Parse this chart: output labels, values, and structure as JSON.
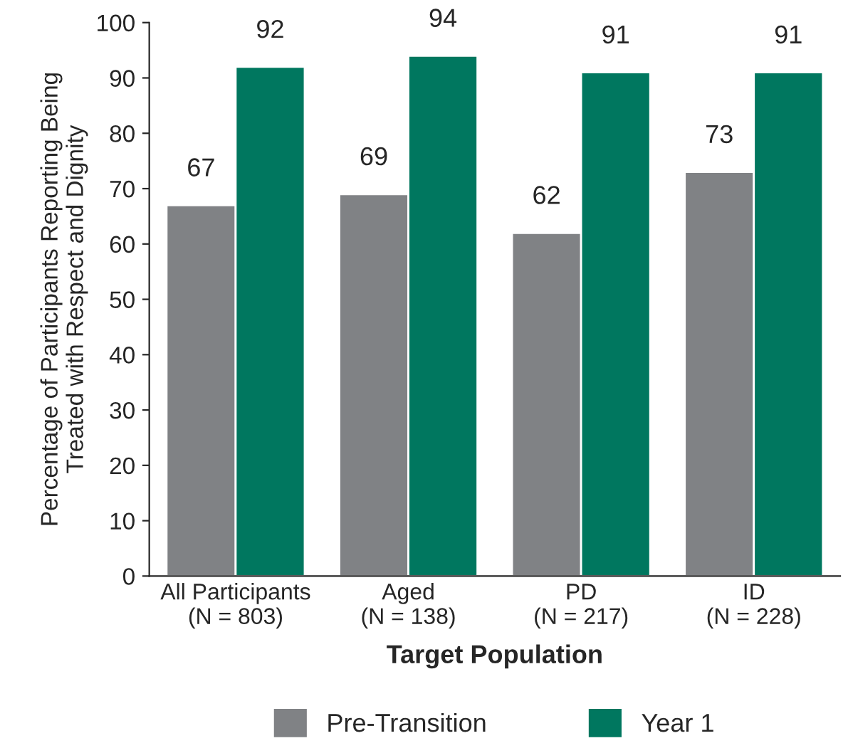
{
  "chart_data": {
    "type": "bar",
    "xlabel": "Target Population",
    "ylabel": "Percentage of Participants Reporting Being\nTreated with Respect and Dignity",
    "categories": [
      "All Participants\n(N = 803)",
      "Aged\n(N = 138)",
      "PD\n(N = 217)",
      "ID\n(N = 228)"
    ],
    "series": [
      {
        "name": "Pre-Transition",
        "color": "#808285",
        "values": [
          67,
          69,
          62,
          73
        ]
      },
      {
        "name": "Year 1",
        "color": "#00775f",
        "values": [
          92,
          94,
          91,
          91
        ]
      }
    ],
    "ylim": [
      0,
      100
    ],
    "yticks": [
      0,
      10,
      20,
      30,
      40,
      50,
      60,
      70,
      80,
      90,
      100
    ],
    "data_labels": true,
    "legend": "bottom",
    "grid": false
  }
}
